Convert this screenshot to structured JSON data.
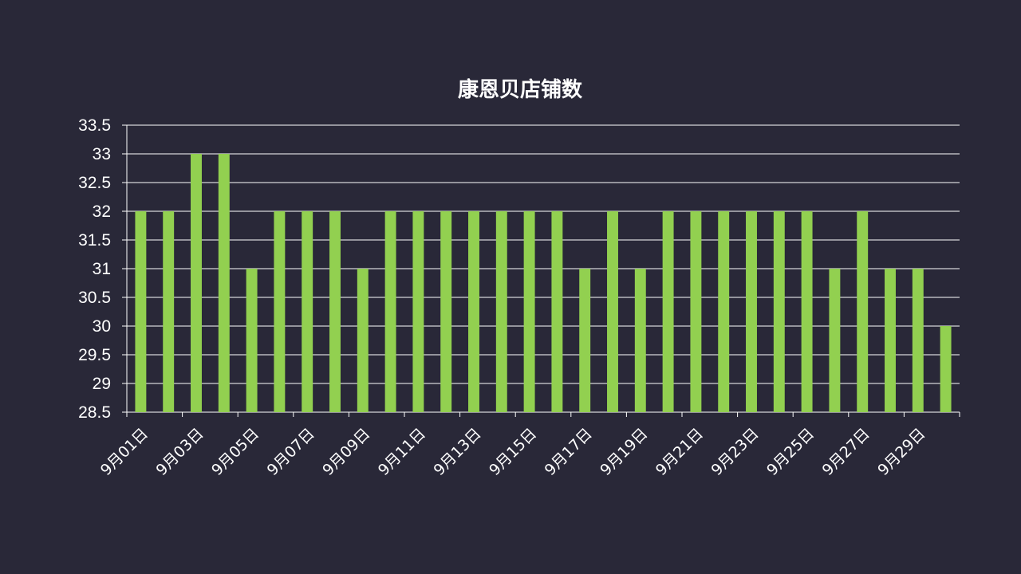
{
  "colors": {
    "background": "#292838",
    "bar": "#92d050",
    "text": "#ffffff",
    "grid": "#ffffff"
  },
  "chart_data": {
    "type": "bar",
    "title": "康恩贝店铺数",
    "xlabel": "",
    "ylabel": "",
    "ylim": [
      28.5,
      33.5
    ],
    "ytick_step": 0.5,
    "y_tick_labels": [
      "28.5",
      "29",
      "29.5",
      "30",
      "30.5",
      "31",
      "31.5",
      "32",
      "32.5",
      "33",
      "33.5"
    ],
    "grid": true,
    "legend": "none",
    "categories": [
      "9月01日",
      "9月02日",
      "9月03日",
      "9月04日",
      "9月05日",
      "9月06日",
      "9月07日",
      "9月08日",
      "9月09日",
      "9月10日",
      "9月11日",
      "9月12日",
      "9月13日",
      "9月14日",
      "9月15日",
      "9月16日",
      "9月17日",
      "9月18日",
      "9月19日",
      "9月20日",
      "9月21日",
      "9月22日",
      "9月23日",
      "9月24日",
      "9月25日",
      "9月26日",
      "9月27日",
      "9月28日",
      "9月29日",
      "9月30日"
    ],
    "x_tick_labels": [
      "9月01日",
      "9月03日",
      "9月05日",
      "9月07日",
      "9月09日",
      "9月11日",
      "9月13日",
      "9月15日",
      "9月17日",
      "9月19日",
      "9月21日",
      "9月23日",
      "9月25日",
      "9月27日",
      "9月29日"
    ],
    "values": [
      32,
      32,
      33,
      33,
      31,
      32,
      32,
      32,
      31,
      32,
      32,
      32,
      32,
      32,
      32,
      32,
      31,
      32,
      31,
      32,
      32,
      32,
      32,
      32,
      32,
      31,
      32,
      31,
      31,
      30
    ]
  }
}
